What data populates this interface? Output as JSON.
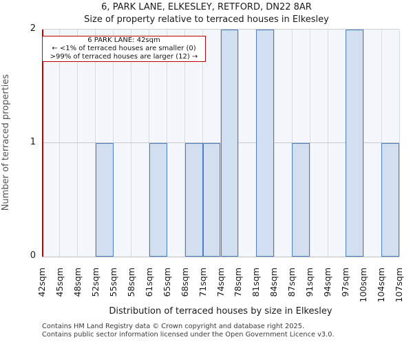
{
  "header": {
    "title": "6, PARK LANE, ELKESLEY, RETFORD, DN22 8AR",
    "subtitle": "Size of property relative to terraced houses in Elkesley"
  },
  "annotation": {
    "line1": "6 PARK LANE: 42sqm",
    "line2": "← <1% of terraced houses are smaller (0)",
    "line3": ">99% of terraced houses are larger (12) →"
  },
  "chart_data": {
    "type": "bar",
    "title": "Size of property relative to terraced houses in Elkesley",
    "xlabel": "Distribution of terraced houses by size in Elkesley",
    "ylabel": "Number of terraced properties",
    "ylim": [
      0,
      2
    ],
    "yticks": [
      "0",
      "1",
      "2"
    ],
    "grid": true,
    "x_tick_labels": [
      "42sqm",
      "45sqm",
      "48sqm",
      "52sqm",
      "55sqm",
      "58sqm",
      "61sqm",
      "65sqm",
      "68sqm",
      "71sqm",
      "74sqm",
      "78sqm",
      "81sqm",
      "84sqm",
      "87sqm",
      "91sqm",
      "94sqm",
      "97sqm",
      "100sqm",
      "104sqm",
      "107sqm"
    ],
    "bins": [
      {
        "label": "42sqm",
        "count": 0
      },
      {
        "label": "45sqm",
        "count": 0
      },
      {
        "label": "48sqm",
        "count": 0
      },
      {
        "label": "52sqm",
        "count": 1
      },
      {
        "label": "55sqm",
        "count": 0
      },
      {
        "label": "58sqm",
        "count": 0
      },
      {
        "label": "61sqm",
        "count": 1
      },
      {
        "label": "65sqm",
        "count": 0
      },
      {
        "label": "68sqm",
        "count": 1
      },
      {
        "label": "71sqm",
        "count": 1
      },
      {
        "label": "74sqm",
        "count": 2
      },
      {
        "label": "78sqm",
        "count": 0
      },
      {
        "label": "81sqm",
        "count": 2
      },
      {
        "label": "84sqm",
        "count": 0
      },
      {
        "label": "87sqm",
        "count": 1
      },
      {
        "label": "91sqm",
        "count": 0
      },
      {
        "label": "94sqm",
        "count": 0
      },
      {
        "label": "97sqm",
        "count": 2
      },
      {
        "label": "100sqm",
        "count": 0
      },
      {
        "label": "104sqm",
        "count": 1
      }
    ],
    "marker": {
      "label": "42sqm",
      "position_index": 0
    }
  },
  "colors": {
    "plot_background": "#f4f7fc",
    "bar_fill": "#d2dff1",
    "bar_border": "#4b7ec0",
    "marker_red": "#bb0000",
    "gridline": "#d8dbe2"
  },
  "footer": {
    "line1": "Contains HM Land Registry data © Crown copyright and database right 2025.",
    "line2": "Contains public sector information licensed under the Open Government Licence v3.0."
  }
}
